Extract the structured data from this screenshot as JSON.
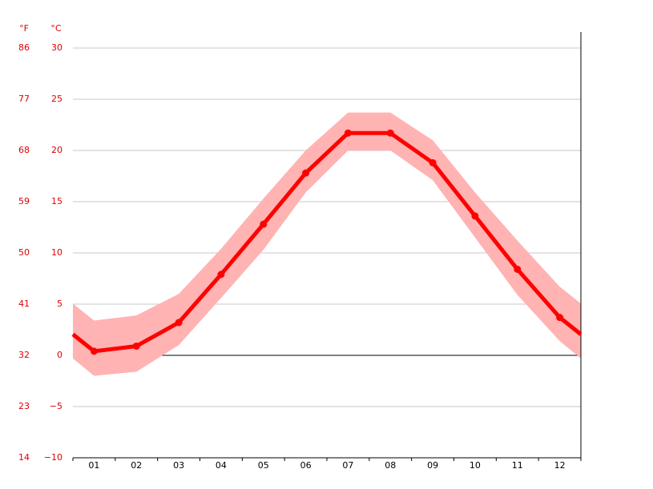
{
  "chart_data": {
    "type": "line",
    "y_unit_label": "°C",
    "y2_unit_label": "°F",
    "categories": [
      "01",
      "02",
      "03",
      "04",
      "05",
      "06",
      "07",
      "08",
      "09",
      "10",
      "11",
      "12"
    ],
    "series": [
      {
        "color": "#ff0000",
        "values": [
          0.4,
          0.9,
          3.2,
          7.9,
          12.8,
          17.8,
          21.7,
          21.7,
          18.8,
          13.6,
          8.4,
          3.7
        ]
      }
    ],
    "band": {
      "color": "#ffb3b3",
      "high": [
        3.4,
        3.9,
        6.0,
        10.4,
        15.3,
        20.0,
        23.7,
        23.7,
        21.0,
        15.9,
        11.2,
        6.7
      ],
      "low": [
        -2.0,
        -1.6,
        1.0,
        5.6,
        10.3,
        15.9,
        20.0,
        20.0,
        17.1,
        11.5,
        5.9,
        1.4
      ]
    },
    "ylim": [
      -10,
      30
    ],
    "yticks": [
      {
        "value": -10,
        "label": "−10"
      },
      {
        "value": -5,
        "label": "−5"
      },
      0,
      5,
      10,
      15,
      20,
      25,
      30
    ],
    "y2lim": [
      14,
      86
    ],
    "y2ticks": [
      14,
      23,
      32,
      41,
      50,
      59,
      68,
      77,
      86
    ],
    "grid": true
  }
}
